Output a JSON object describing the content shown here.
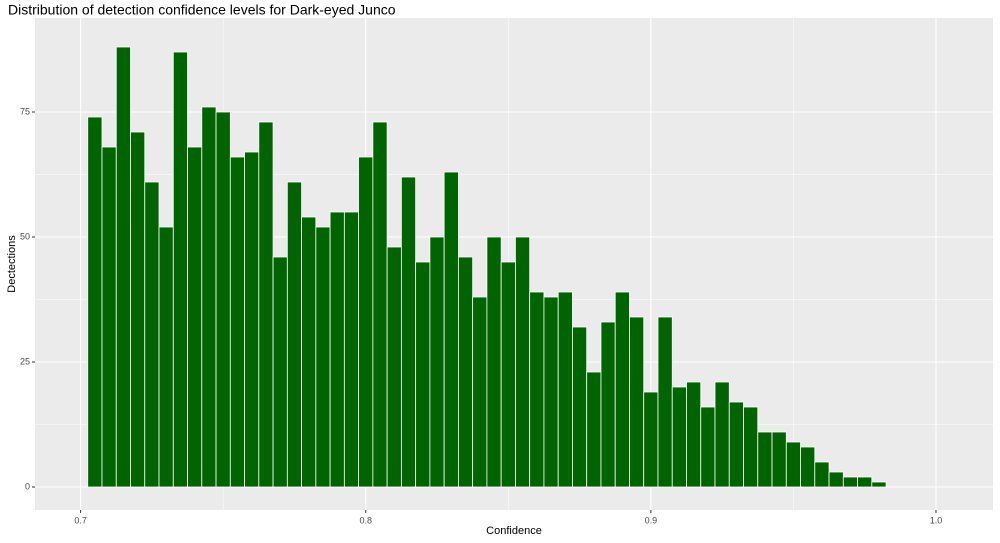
{
  "chart_data": {
    "type": "histogram",
    "title": "Distribution of detection confidence levels for Dark-eyed Junco",
    "x_label": "Confidence",
    "y_label": "Dectections",
    "bins": [
      0.7025,
      0.7075,
      0.7125,
      0.7175,
      0.7225,
      0.7275,
      0.7325,
      0.7375,
      0.7425,
      0.7475,
      0.7525,
      0.7575,
      0.7625,
      0.7675,
      0.7725,
      0.7775,
      0.7825,
      0.7875,
      0.7925,
      0.7975,
      0.8025,
      0.8075,
      0.8125,
      0.8175,
      0.8225,
      0.8275,
      0.8325,
      0.8375,
      0.8425,
      0.8475,
      0.8525,
      0.8575,
      0.8625,
      0.8675,
      0.8725,
      0.8775,
      0.8825,
      0.8875,
      0.8925,
      0.8975,
      0.9025,
      0.9075,
      0.9125,
      0.9175,
      0.9225,
      0.9275,
      0.9325,
      0.9375,
      0.9425,
      0.9475,
      0.9525,
      0.9575,
      0.9625,
      0.9675,
      0.9725,
      0.9775,
      0.9825
    ],
    "values": [
      74,
      68,
      88,
      71,
      61,
      52,
      87,
      68,
      76,
      75,
      66,
      67,
      73,
      46,
      61,
      54,
      52,
      55,
      55,
      66,
      73,
      48,
      62,
      45,
      50,
      63,
      46,
      38,
      50,
      45,
      50,
      39,
      38,
      39,
      32,
      23,
      33,
      39,
      34,
      19,
      34,
      20,
      21,
      16,
      21,
      17,
      16,
      11,
      11,
      9,
      8,
      5,
      3,
      2,
      2,
      1
    ],
    "color": "#006400",
    "xlim": [
      0.684,
      1.02
    ],
    "xticks": [
      0.7,
      0.8,
      0.9,
      {
        "value": 1,
        "label": "1.0"
      }
    ],
    "ylim": [
      -4.6,
      93.8
    ],
    "yticks": [
      0,
      25,
      50,
      75
    ],
    "grid": true
  }
}
